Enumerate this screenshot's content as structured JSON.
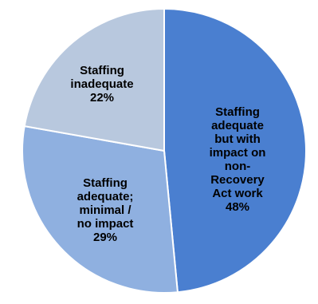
{
  "chart_data": {
    "type": "pie",
    "title": "",
    "slices": [
      {
        "label_lines": [
          "Staffing",
          "adequate",
          "but with",
          "impact on",
          "non-",
          "Recovery",
          "Act work"
        ],
        "percent_text": "48%",
        "value": 48,
        "color": "#4a7fd0"
      },
      {
        "label_lines": [
          "Staffing",
          "adequate;",
          "minimal /",
          "no impact"
        ],
        "percent_text": "29%",
        "value": 29,
        "color": "#8fb0e0"
      },
      {
        "label_lines": [
          "Staffing",
          "inadequate"
        ],
        "percent_text": "22%",
        "value": 22,
        "color": "#b8c8de"
      }
    ],
    "legend": "none",
    "start_angle_deg": 0,
    "direction": "clockwise"
  }
}
